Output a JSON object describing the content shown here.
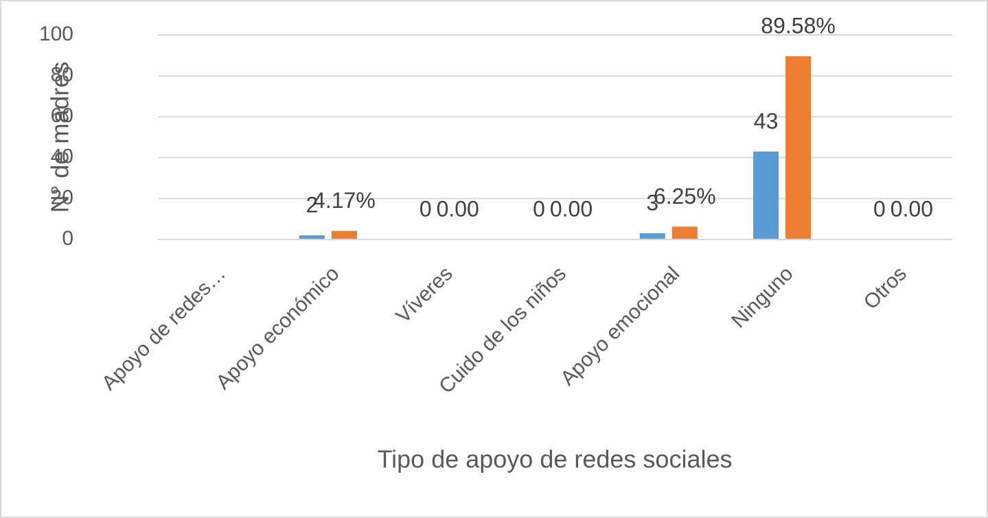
{
  "chart_data": {
    "type": "bar",
    "x_label": "Tipo de apoyo de redes sociales",
    "y_label": "N° de madres",
    "categories": [
      "Apoyo de redes…",
      "Apoyo económico",
      "Víveres",
      "Cuido de los niños",
      "Apoyo emocional",
      "Ninguno",
      "Otros"
    ],
    "series": [
      {
        "color": "#5b9bd5",
        "values": [
          null,
          2,
          0,
          0,
          3,
          43,
          0
        ]
      },
      {
        "color": "#ed7d31",
        "values": [
          null,
          4.17,
          0,
          0,
          6.25,
          89.58,
          0
        ],
        "value_labels": [
          null,
          "4.17%",
          "0.00",
          "0.00",
          "6.25%",
          "89.58%",
          "0.00"
        ]
      }
    ],
    "ylim": [
      0,
      100
    ],
    "yticks": [
      0,
      20,
      40,
      60,
      80,
      100
    ],
    "grid": true
  }
}
